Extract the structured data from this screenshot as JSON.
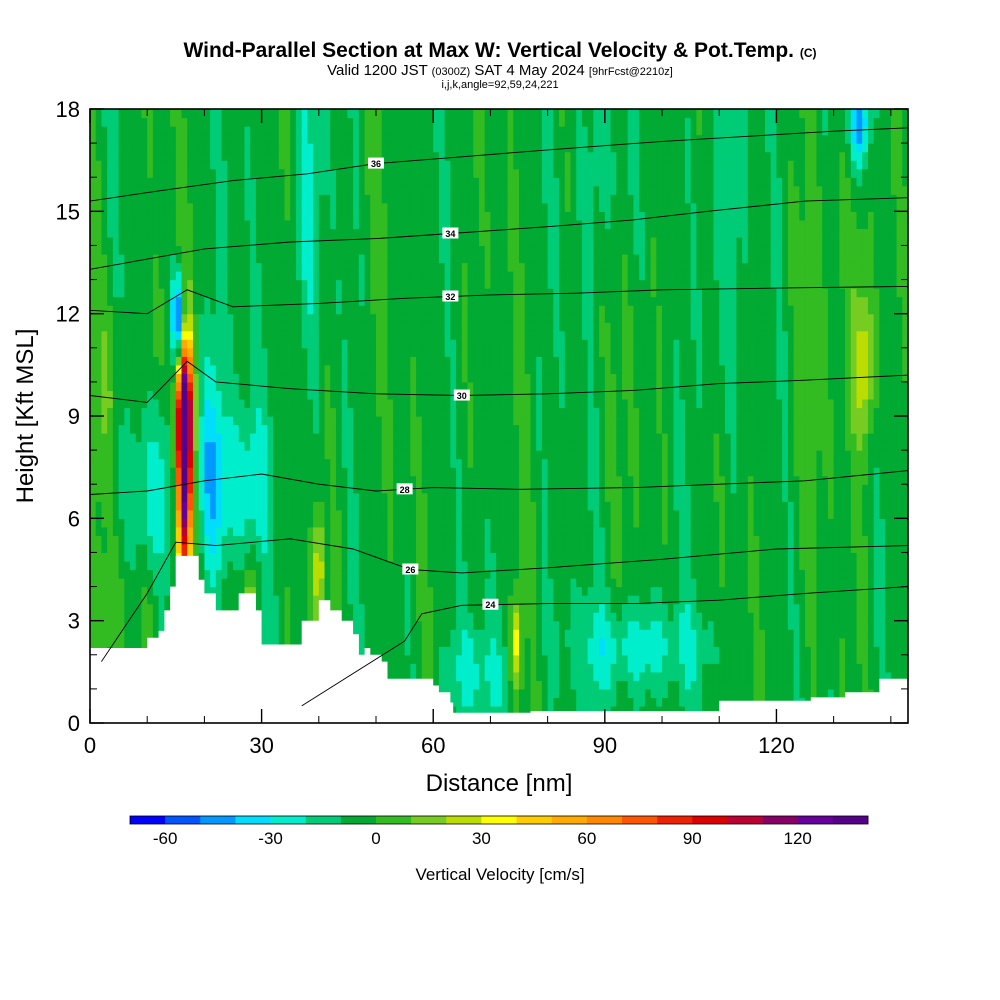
{
  "chart_data": {
    "type": "heatmap",
    "title": "Wind-Parallel Section at Max W: Vertical Velocity & Pot.Temp.",
    "title_mark": "(C)",
    "subtitle": {
      "valid": "Valid 1200 JST",
      "zulu": "(0300Z)",
      "date": "SAT 4 May 2024",
      "forecast": "[9hrFcst@2210z]"
    },
    "indices_line": "i,j,k,angle=92,59,24,221",
    "xlabel": "Distance [nm]",
    "ylabel": "Height [Kft MSL]",
    "xlim": [
      0,
      143
    ],
    "ylim": [
      0,
      18
    ],
    "x_ticks": [
      "0",
      "30",
      "60",
      "90",
      "120"
    ],
    "y_ticks": [
      "0",
      "3",
      "6",
      "9",
      "12",
      "15",
      "18"
    ],
    "colorbar": {
      "label": "Vertical Velocity [cm/s]",
      "tick_labels": [
        "-60",
        "-30",
        "0",
        "30",
        "60",
        "90",
        "120"
      ],
      "tick_values": [
        -60,
        -30,
        0,
        30,
        60,
        90,
        120
      ],
      "range": [
        -70,
        140
      ],
      "step": 10,
      "colors": [
        "#0000ff",
        "#0055ff",
        "#0099ff",
        "#00ddff",
        "#00eecc",
        "#00cc77",
        "#00aa33",
        "#33bb22",
        "#77cc22",
        "#bbdd00",
        "#ffff00",
        "#ffcc00",
        "#ffaa00",
        "#ff8800",
        "#ff5500",
        "#ee2200",
        "#dd0000",
        "#bb0033",
        "#880066",
        "#660099",
        "#550088"
      ]
    },
    "background_w": -5,
    "w_features": [
      {
        "x": 16.5,
        "y": 7.5,
        "sx": 0.9,
        "sy": 2.6,
        "w": 150
      },
      {
        "x": 16.5,
        "y": 9.2,
        "sx": 1.0,
        "sy": 1.2,
        "w": 60
      },
      {
        "x": 15.5,
        "y": 11.8,
        "sx": 0.8,
        "sy": 1.0,
        "w": -70
      },
      {
        "x": 21.0,
        "y": 7.5,
        "sx": 1.6,
        "sy": 2.6,
        "w": -28
      },
      {
        "x": 26.0,
        "y": 7.0,
        "sx": 4.0,
        "sy": 1.6,
        "w": -22
      },
      {
        "x": 11.0,
        "y": 6.5,
        "sx": 3.0,
        "sy": 1.8,
        "w": -18
      },
      {
        "x": 40.0,
        "y": 4.5,
        "sx": 0.7,
        "sy": 1.2,
        "w": 35
      },
      {
        "x": 28.0,
        "y": 3.6,
        "sx": 1.0,
        "sy": 0.8,
        "w": 25
      },
      {
        "x": 74.5,
        "y": 2.3,
        "sx": 0.7,
        "sy": 0.9,
        "w": 40
      },
      {
        "x": 135.5,
        "y": 10.5,
        "sx": 1.4,
        "sy": 1.6,
        "w": 32
      },
      {
        "x": 135.0,
        "y": 15.0,
        "sx": 2.0,
        "sy": 4.0,
        "w": 10
      },
      {
        "x": 134.5,
        "y": 17.6,
        "sx": 1.2,
        "sy": 1.0,
        "w": -45
      },
      {
        "x": 125.0,
        "y": 9.0,
        "sx": 3.0,
        "sy": 4.0,
        "w": 8
      },
      {
        "x": 12.0,
        "y": 11.5,
        "sx": 2.0,
        "sy": 1.4,
        "w": 8
      },
      {
        "x": 3.0,
        "y": 10.0,
        "sx": 2.0,
        "sy": 2.0,
        "w": 12
      },
      {
        "x": 50.0,
        "y": 14.0,
        "sx": 3.0,
        "sy": 4.0,
        "w": 3
      },
      {
        "x": 64.0,
        "y": 11.0,
        "sx": 2.0,
        "sy": 5.0,
        "w": 5
      },
      {
        "x": 97.0,
        "y": 12.0,
        "sx": 2.5,
        "sy": 5.0,
        "w": 4
      },
      {
        "x": 95.0,
        "y": 2.2,
        "sx": 8.0,
        "sy": 1.0,
        "w": -22
      },
      {
        "x": 67.0,
        "y": 1.5,
        "sx": 4.0,
        "sy": 1.0,
        "w": -18
      },
      {
        "x": 8.0,
        "y": 3.5,
        "sx": 5.0,
        "sy": 1.2,
        "w": 8
      },
      {
        "x": 38.0,
        "y": 15.0,
        "sx": 2.0,
        "sy": 3.0,
        "w": -16
      },
      {
        "x": 90.0,
        "y": 16.5,
        "sx": 3.0,
        "sy": 2.0,
        "w": -12
      },
      {
        "x": 110.0,
        "y": 14.0,
        "sx": 2.5,
        "sy": 4.0,
        "w": -12
      }
    ],
    "terrain": [
      [
        0,
        2.2
      ],
      [
        8,
        2.2
      ],
      [
        10,
        2.5
      ],
      [
        12,
        2.7
      ],
      [
        13,
        3.3
      ],
      [
        14,
        4.0
      ],
      [
        15,
        4.9
      ],
      [
        18,
        4.9
      ],
      [
        19,
        4.2
      ],
      [
        20,
        3.8
      ],
      [
        22,
        3.3
      ],
      [
        25,
        3.3
      ],
      [
        26,
        3.8
      ],
      [
        28,
        3.8
      ],
      [
        29,
        3.3
      ],
      [
        30,
        2.3
      ],
      [
        34,
        2.3
      ],
      [
        37,
        3.0
      ],
      [
        40,
        3.6
      ],
      [
        42,
        3.3
      ],
      [
        44,
        3.0
      ],
      [
        46,
        2.6
      ],
      [
        47,
        2.0
      ],
      [
        48,
        2.2
      ],
      [
        49,
        2.0
      ],
      [
        51,
        1.8
      ],
      [
        52,
        1.3
      ],
      [
        58,
        1.3
      ],
      [
        60,
        1.1
      ],
      [
        61,
        0.9
      ],
      [
        63,
        0.6
      ],
      [
        63.5,
        0.3
      ],
      [
        75,
        0.3
      ],
      [
        77,
        0.35
      ],
      [
        104,
        0.35
      ],
      [
        110,
        0.65
      ],
      [
        126,
        0.75
      ],
      [
        132,
        0.9
      ],
      [
        138,
        1.3
      ],
      [
        143,
        1.3
      ]
    ],
    "theta_contours": [
      {
        "value": 24,
        "label": "24",
        "label_x": 70,
        "points": [
          [
            37,
            0.5
          ],
          [
            55,
            2.4
          ],
          [
            58,
            3.2
          ],
          [
            65,
            3.45
          ],
          [
            80,
            3.5
          ],
          [
            95,
            3.5
          ],
          [
            110,
            3.6
          ],
          [
            125,
            3.8
          ],
          [
            143,
            4.0
          ]
        ]
      },
      {
        "value": 26,
        "label": "26",
        "label_x": 56,
        "points": [
          [
            2,
            1.8
          ],
          [
            10,
            3.8
          ],
          [
            15,
            5.3
          ],
          [
            22,
            5.2
          ],
          [
            35,
            5.4
          ],
          [
            46,
            5.1
          ],
          [
            56,
            4.5
          ],
          [
            65,
            4.4
          ],
          [
            80,
            4.55
          ],
          [
            100,
            4.8
          ],
          [
            120,
            5.1
          ],
          [
            143,
            5.2
          ]
        ]
      },
      {
        "value": 28,
        "label": "28",
        "label_x": 55,
        "points": [
          [
            0,
            6.7
          ],
          [
            10,
            6.8
          ],
          [
            20,
            7.1
          ],
          [
            30,
            7.3
          ],
          [
            40,
            7.0
          ],
          [
            50,
            6.8
          ],
          [
            60,
            6.9
          ],
          [
            75,
            6.85
          ],
          [
            95,
            6.9
          ],
          [
            110,
            7.0
          ],
          [
            125,
            7.1
          ],
          [
            143,
            7.4
          ]
        ]
      },
      {
        "value": 30,
        "label": "30",
        "label_x": 65,
        "points": [
          [
            0,
            9.6
          ],
          [
            10,
            9.4
          ],
          [
            17,
            10.6
          ],
          [
            22,
            10.0
          ],
          [
            35,
            9.8
          ],
          [
            50,
            9.65
          ],
          [
            65,
            9.6
          ],
          [
            80,
            9.65
          ],
          [
            95,
            9.75
          ],
          [
            110,
            9.95
          ],
          [
            125,
            10.05
          ],
          [
            143,
            10.2
          ]
        ]
      },
      {
        "value": 32,
        "label": "32",
        "label_x": 63,
        "points": [
          [
            0,
            12.1
          ],
          [
            10,
            12.0
          ],
          [
            17,
            12.7
          ],
          [
            25,
            12.2
          ],
          [
            40,
            12.3
          ],
          [
            55,
            12.45
          ],
          [
            70,
            12.55
          ],
          [
            85,
            12.6
          ],
          [
            100,
            12.7
          ],
          [
            120,
            12.75
          ],
          [
            143,
            12.8
          ]
        ]
      },
      {
        "value": 34,
        "label": "34",
        "label_x": 63,
        "points": [
          [
            0,
            13.3
          ],
          [
            10,
            13.6
          ],
          [
            20,
            13.9
          ],
          [
            35,
            14.1
          ],
          [
            50,
            14.2
          ],
          [
            63,
            14.35
          ],
          [
            80,
            14.55
          ],
          [
            95,
            14.75
          ],
          [
            108,
            15.0
          ],
          [
            125,
            15.3
          ],
          [
            143,
            15.4
          ]
        ]
      },
      {
        "value": 36,
        "label": "36",
        "label_x": 50,
        "points": [
          [
            0,
            15.3
          ],
          [
            12,
            15.6
          ],
          [
            25,
            15.9
          ],
          [
            38,
            16.1
          ],
          [
            50,
            16.4
          ],
          [
            65,
            16.6
          ],
          [
            80,
            16.8
          ],
          [
            100,
            17.05
          ],
          [
            115,
            17.2
          ],
          [
            130,
            17.35
          ],
          [
            143,
            17.45
          ]
        ]
      }
    ]
  }
}
